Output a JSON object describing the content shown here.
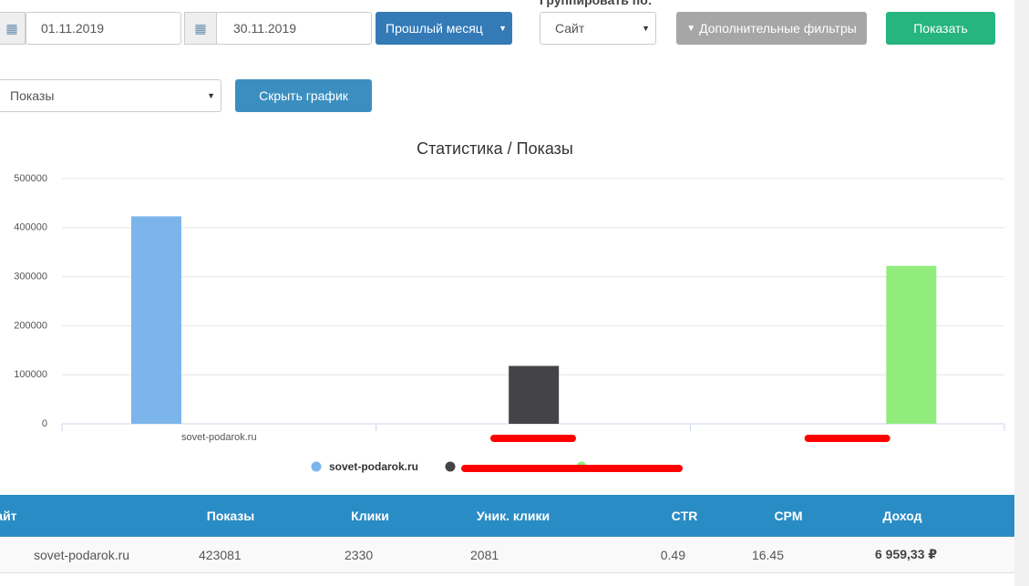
{
  "toolbar": {
    "date_from": "01.11.2019",
    "date_to": "30.11.2019",
    "period": "Прошлый месяц",
    "group_label": "Группировать по:",
    "group_select": "Сайт",
    "filters_button": "Дополнительные фильтры",
    "show_button": "Показать",
    "metric_select": "Показы",
    "hide_chart_button": "Скрыть график"
  },
  "chart_data": {
    "type": "bar",
    "title": "Статистика / Показы",
    "categories": [
      "sovet-podarok.ru",
      null,
      null
    ],
    "series": [
      {
        "name": "sovet-podarok.ru",
        "color": "#7cb5ec",
        "values": [
          423081,
          0,
          0
        ]
      },
      {
        "name": null,
        "color": "#434348",
        "values": [
          0,
          118000,
          0
        ]
      },
      {
        "name": null,
        "color": "#90ed7d",
        "values": [
          0,
          0,
          322000
        ]
      }
    ],
    "ylim": [
      0,
      500000
    ],
    "yticks": [
      0,
      100000,
      200000,
      300000,
      400000,
      500000
    ],
    "grid": true
  },
  "table": {
    "columns": [
      "Сайт",
      "Показы",
      "Клики",
      "Уник. клики",
      "CTR",
      "CPM",
      "Доход"
    ],
    "rows": [
      [
        "sovet-podarok.ru",
        423081,
        2330,
        2081,
        0.49,
        16.45,
        "6 959,33 ₽"
      ]
    ]
  }
}
